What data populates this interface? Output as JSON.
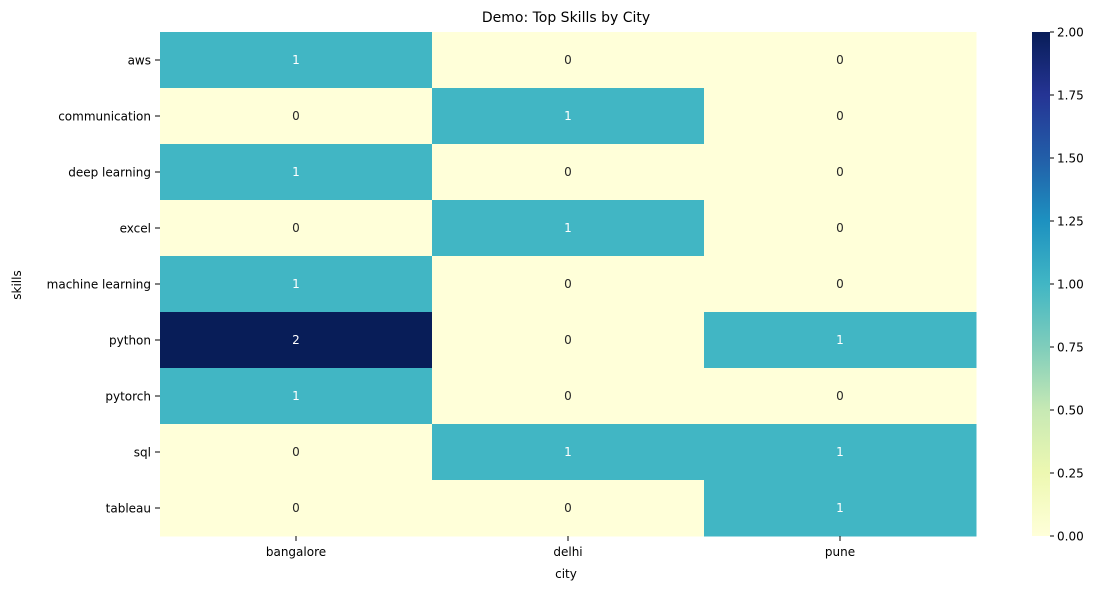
{
  "chart_data": {
    "type": "heatmap",
    "title": "Demo: Top Skills by City",
    "xlabel": "city",
    "ylabel": "skills",
    "columns": [
      "bangalore",
      "delhi",
      "pune"
    ],
    "rows": [
      "aws",
      "communication",
      "deep learning",
      "excel",
      "machine learning",
      "python",
      "pytorch",
      "sql",
      "tableau"
    ],
    "values": [
      [
        1,
        0,
        0
      ],
      [
        0,
        1,
        0
      ],
      [
        1,
        0,
        0
      ],
      [
        0,
        1,
        0
      ],
      [
        1,
        0,
        0
      ],
      [
        2,
        0,
        1
      ],
      [
        1,
        0,
        0
      ],
      [
        0,
        1,
        1
      ],
      [
        0,
        0,
        1
      ]
    ],
    "colormap": "YlGnBu",
    "colorbar": {
      "range": [
        0,
        2
      ],
      "ticks": [
        "0.00",
        "0.25",
        "0.50",
        "0.75",
        "1.00",
        "1.25",
        "1.50",
        "1.75",
        "2.00"
      ]
    },
    "colors": {
      "low": "#ffffd9",
      "mid": "#41b6c4",
      "high": "#081d58"
    }
  }
}
